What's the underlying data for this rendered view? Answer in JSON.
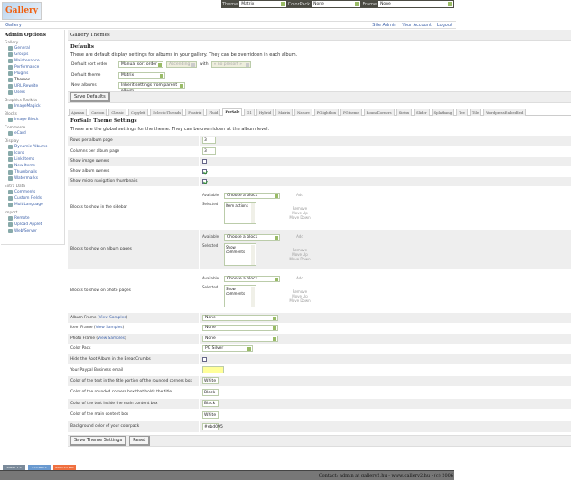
{
  "logo": "Gallery",
  "topbar": {
    "theme_label": "Theme",
    "theme_value": "Matrix",
    "colorpack_label": "ColorPack",
    "colorpack_value": "None",
    "frame_label": "Frame",
    "frame_value": "None"
  },
  "breadcrumb": "Gallery",
  "toplinks": [
    "Site Admin",
    "Your Account",
    "Logout"
  ],
  "sidebar": {
    "title": "Admin Options",
    "groups": [
      {
        "name": "Gallery",
        "items": [
          "General",
          "Groups",
          "Maintenance",
          "Performance",
          "Plugins",
          "Themes",
          "URL Rewrite",
          "Users"
        ]
      },
      {
        "name": "Graphics Toolkits",
        "items": [
          "ImageMagick"
        ]
      },
      {
        "name": "Blocks",
        "items": [
          "Image Block"
        ]
      },
      {
        "name": "Commerce",
        "items": [
          "eCard"
        ]
      },
      {
        "name": "Display",
        "items": [
          "Dynamic Albums",
          "Icons",
          "Link Items",
          "New Items",
          "Thumbnails",
          "Watermarks"
        ]
      },
      {
        "name": "Extra Data",
        "items": [
          "Comments",
          "Custom Fields",
          "MultiLanguage"
        ]
      },
      {
        "name": "Import",
        "items": [
          "Remote",
          "Upload Applet",
          "Web/Server"
        ]
      }
    ],
    "current": "Themes"
  },
  "main": {
    "title": "Gallery Themes",
    "defaults_title": "Defaults",
    "defaults_desc": "These are default display settings for albums in your gallery. They can be overridden in each album.",
    "sort_label": "Default sort order",
    "sort_value": "Manual sort order",
    "direction_value": "Ascending",
    "with_label": "with",
    "presort_value": "« no presort »",
    "theme_label": "Default theme",
    "theme_value": "Matrix",
    "new_label": "New albums",
    "new_value": "Inherit settings from parent album",
    "save_defaults": "Save Defaults",
    "tabs": [
      "Ajaxian",
      "Carbon",
      "Classic",
      "Copyleft",
      "EclecticThreads",
      "Floatrix",
      "Fluid",
      "ForSale",
      "G1",
      "Hybrid",
      "Matrix",
      "Nature",
      "PGlightbox",
      "PGtheme",
      "RoundCorners",
      "Siriux",
      "Slider",
      "Splatbang",
      "Tee",
      "Tile",
      "WordpressEmbedded"
    ],
    "active_tab": "ForSale",
    "settings_title": "ForSale Theme Settings",
    "settings_desc": "These are the global settings for the theme. They can be overridden at the album level.",
    "rows_label": "Rows per album page",
    "rows_value": "3",
    "cols_label": "Columns per album page",
    "cols_value": "3",
    "img_owners_label": "Show image owners",
    "img_owners": false,
    "album_owners_label": "Show album owners",
    "album_owners": true,
    "micro_label": "Show micro navigation thumbnails",
    "micro": true,
    "block_available": "Available",
    "block_selected": "Selected",
    "block_choose": "Choose a block",
    "add": "Add",
    "remove": "Remove",
    "move_up": "Move Up",
    "move_down": "Move Down",
    "sidebar_blocks_label": "Blocks to show in the sidebar",
    "sidebar_blocks": "Item actions",
    "album_blocks_label": "Blocks to show on album pages",
    "album_blocks": "Show comments",
    "photo_blocks_label": "Blocks to show on photo pages",
    "photo_blocks": "Show comments",
    "view_samples": "View Samples",
    "album_frame_label": "Album Frame",
    "album_frame": "None",
    "item_frame_label": "Item Frame",
    "item_frame": "None",
    "photo_frame_label": "Photo Frame",
    "photo_frame": "None",
    "colorpack_label": "Color Pack",
    "colorpack": "PG Silver",
    "hide_root_label": "Hide the Root Album in the BreadCrumbs",
    "hide_root": false,
    "paypal_label": "Your Paypal Business email",
    "paypal": "",
    "c1_label": "Color of the text in the title portion of the rounded corners box",
    "c1": "White",
    "c2_label": "Color of the rounded corners box that holds the title",
    "c2": "Black",
    "c3_label": "Color of the text inside the main content box",
    "c3": "Black",
    "c4_label": "Color of the main content box",
    "c4": "White",
    "c5_label": "Background color of your colorpack",
    "c5": "#ebd095",
    "save": "Save Theme Settings",
    "reset": "Reset"
  },
  "badges": [
    "XHTML 1.0",
    "GALLERY 2",
    "RSS GALLERY"
  ],
  "footer": "Contact: admin at gallery2.hu - www.gallery2.hu - (c) 2006"
}
